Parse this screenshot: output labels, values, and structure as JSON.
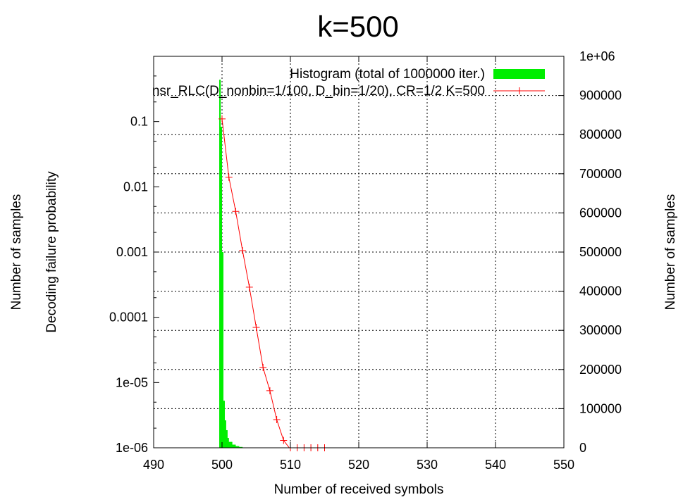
{
  "chart_data": {
    "type": "line",
    "title": "k=500",
    "xlabel": "Number of received symbols",
    "ylabel_left_outer": "Number of samples",
    "ylabel_left_inner": "Decoding failure probability",
    "ylabel_right": "Number of samples",
    "xlim": [
      490,
      550
    ],
    "ylim_left": [
      1e-06,
      1
    ],
    "ylim_left_scale": "log",
    "ylim_right": [
      0,
      1000000
    ],
    "x_ticks": [
      490,
      500,
      510,
      520,
      530,
      540,
      550
    ],
    "y_left_ticks": [
      {
        "value": 0.1,
        "label": "0.1"
      },
      {
        "value": 0.01,
        "label": "0.01"
      },
      {
        "value": 0.001,
        "label": "0.001"
      },
      {
        "value": 0.0001,
        "label": "0.0001"
      },
      {
        "value": 1e-05,
        "label": "1e-05"
      },
      {
        "value": 1e-06,
        "label": "1e-06"
      }
    ],
    "y_right_ticks": [
      {
        "value": 0,
        "label": "0"
      },
      {
        "value": 100000,
        "label": "100000"
      },
      {
        "value": 200000,
        "label": "200000"
      },
      {
        "value": 300000,
        "label": "300000"
      },
      {
        "value": 400000,
        "label": "400000"
      },
      {
        "value": 500000,
        "label": "500000"
      },
      {
        "value": 600000,
        "label": "600000"
      },
      {
        "value": 700000,
        "label": "700000"
      },
      {
        "value": 800000,
        "label": "800000"
      },
      {
        "value": 900000,
        "label": "900000"
      },
      {
        "value": 1000000,
        "label": "1e+06"
      }
    ],
    "grid": true,
    "legend_position": "top-right",
    "series": [
      {
        "name": "Histogram (total of 1000000 iter.)",
        "kind": "histogram",
        "axis": "right",
        "color": "#00ee00",
        "bins": [
          {
            "x": 499.6,
            "value": 940000
          },
          {
            "x": 499.8,
            "value": 820000
          },
          {
            "x": 500.0,
            "value": 500000
          },
          {
            "x": 500.2,
            "value": 120000
          },
          {
            "x": 500.4,
            "value": 70000
          },
          {
            "x": 500.6,
            "value": 45000
          },
          {
            "x": 500.8,
            "value": 25000
          },
          {
            "x": 501.0,
            "value": 15000
          },
          {
            "x": 501.5,
            "value": 8000
          },
          {
            "x": 502.0,
            "value": 4000
          },
          {
            "x": 502.5,
            "value": 2000
          },
          {
            "x": 503.0,
            "value": 800
          }
        ]
      },
      {
        "name": "nsr_RLC(D_nonbin=1/100, D_bin=1/20), CR=1/2 K=500",
        "kind": "line",
        "axis": "left",
        "color": "#ff0000",
        "x": [
          500,
          501,
          502,
          503,
          504,
          505,
          506,
          507,
          508,
          509,
          510,
          511,
          512,
          513,
          514,
          515
        ],
        "y": [
          0.11,
          0.014,
          0.0042,
          0.00105,
          0.00029,
          7e-05,
          1.7e-05,
          7.5e-06,
          2.7e-06,
          1.3e-06,
          9.5e-07,
          2e-07,
          1e-09,
          1e-09,
          1e-09,
          1e-09
        ]
      }
    ]
  }
}
